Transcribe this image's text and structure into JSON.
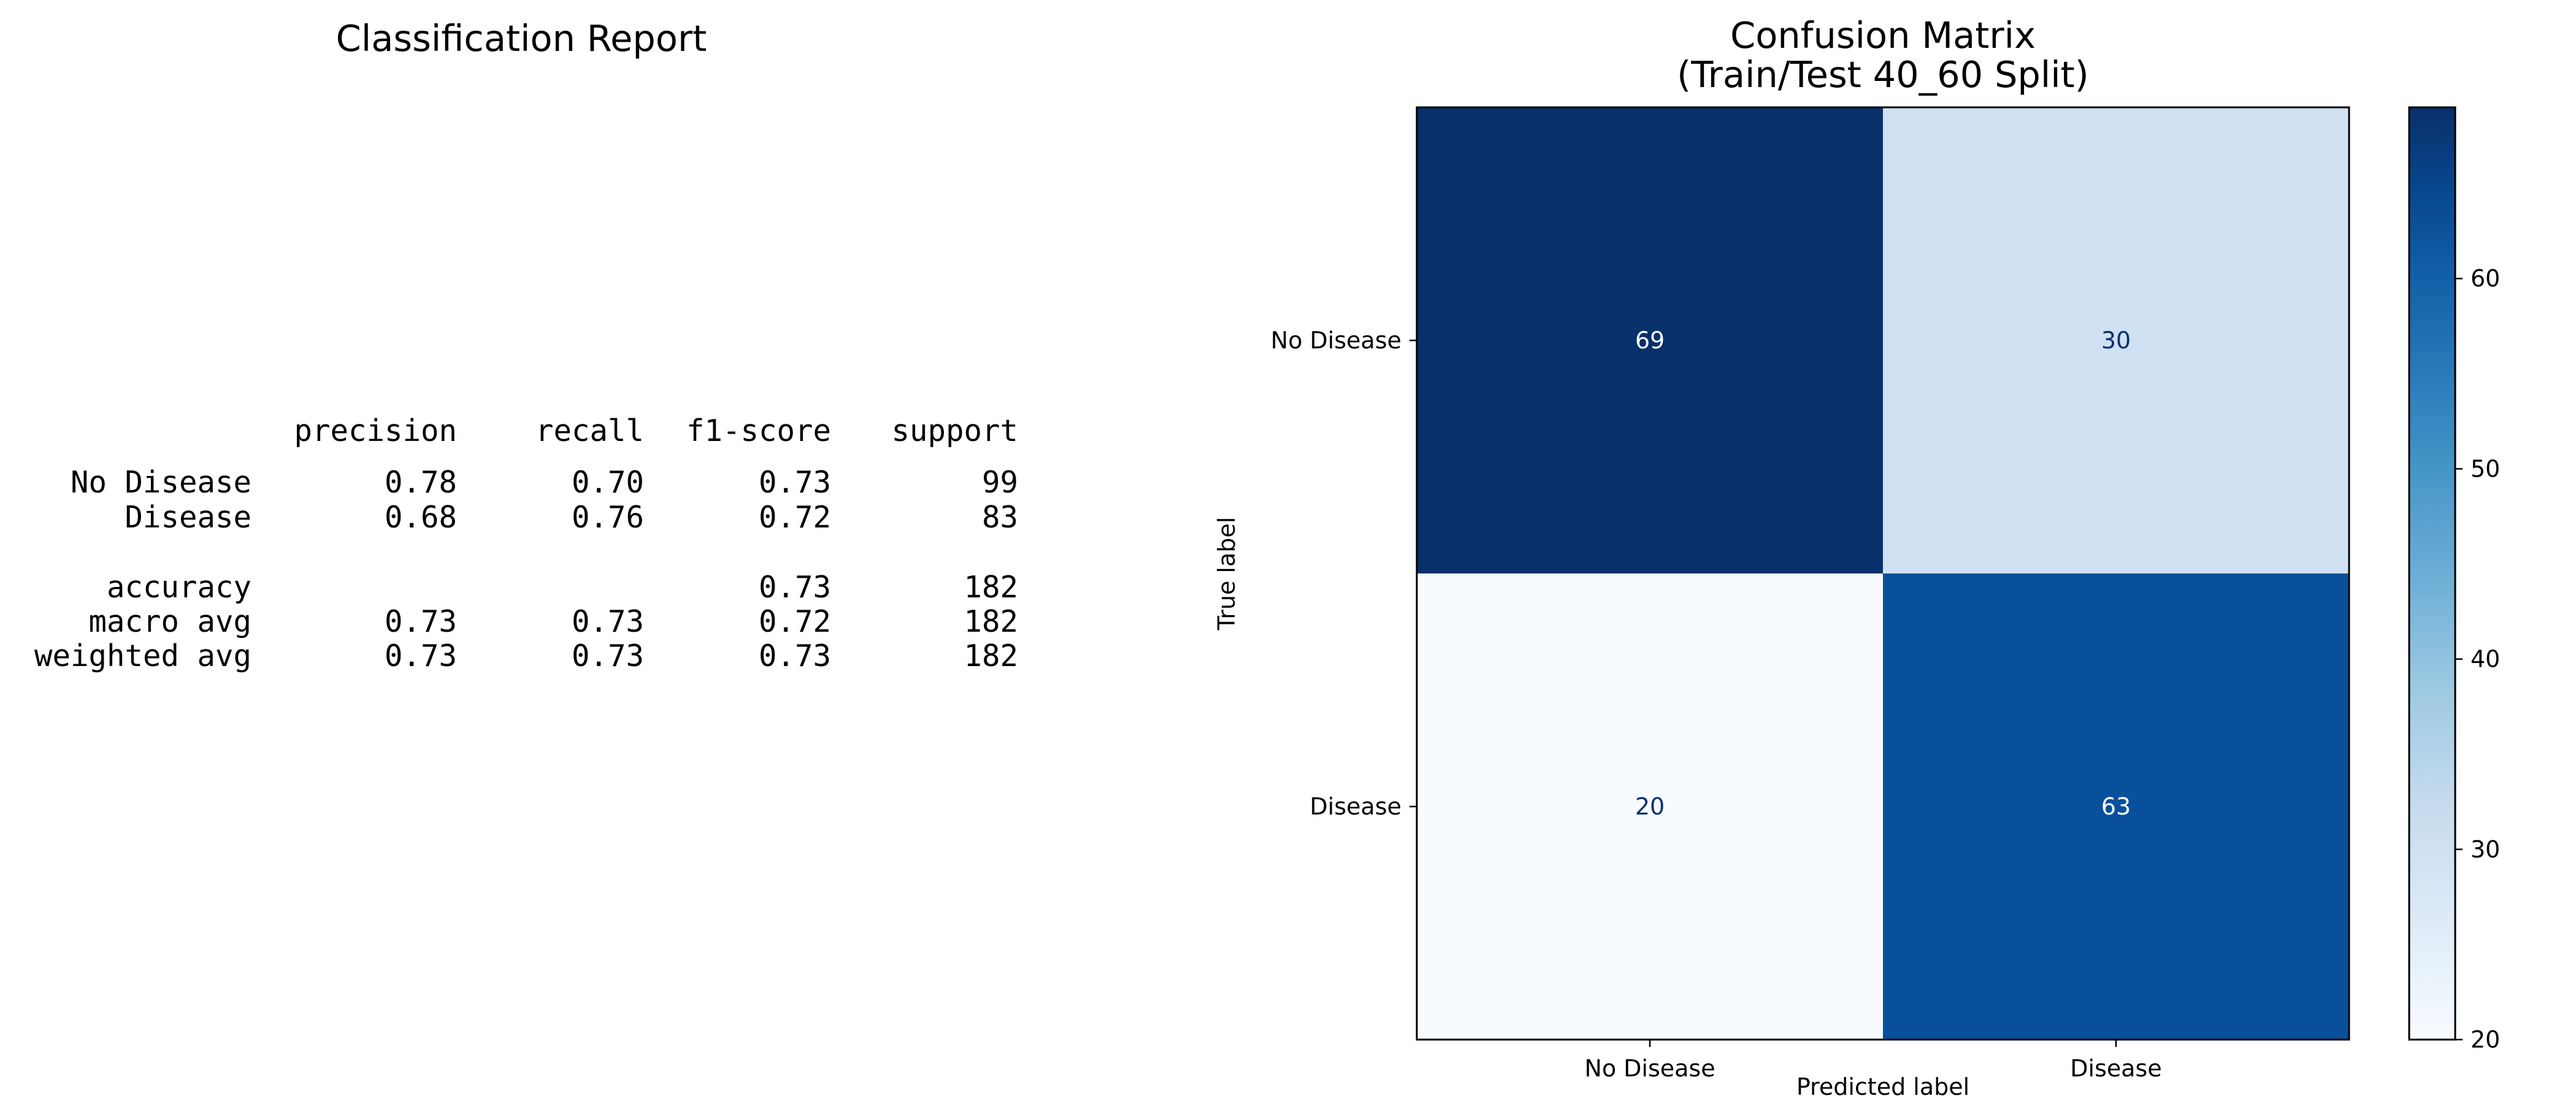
{
  "classification_report": {
    "title": "Classification Report",
    "columns": [
      "precision",
      "recall",
      "f1-score",
      "support"
    ],
    "rows": [
      {
        "label": "No Disease",
        "values": [
          "0.78",
          "0.70",
          "0.73",
          "99"
        ]
      },
      {
        "label": "Disease",
        "values": [
          "0.68",
          "0.76",
          "0.72",
          "83"
        ]
      },
      {
        "label": "accuracy",
        "values": [
          "",
          "",
          "0.73",
          "182"
        ]
      },
      {
        "label": "macro avg",
        "values": [
          "0.73",
          "0.73",
          "0.72",
          "182"
        ]
      },
      {
        "label": "weighted avg",
        "values": [
          "0.73",
          "0.73",
          "0.73",
          "182"
        ]
      }
    ]
  },
  "chart_data": {
    "type": "heatmap",
    "title": "Confusion Matrix\n(Train/Test 40_60 Split)",
    "title_lines": [
      "Confusion Matrix",
      "(Train/Test 40_60 Split)"
    ],
    "xlabel": "Predicted label",
    "ylabel": "True label",
    "x_categories": [
      "No Disease",
      "Disease"
    ],
    "y_categories": [
      "No Disease",
      "Disease"
    ],
    "values": [
      [
        69,
        30
      ],
      [
        20,
        63
      ]
    ],
    "colormap": "Blues",
    "colorbar": {
      "min": 20,
      "max": 69,
      "ticks": [
        20,
        30,
        40,
        50,
        60
      ]
    },
    "grid": false
  }
}
